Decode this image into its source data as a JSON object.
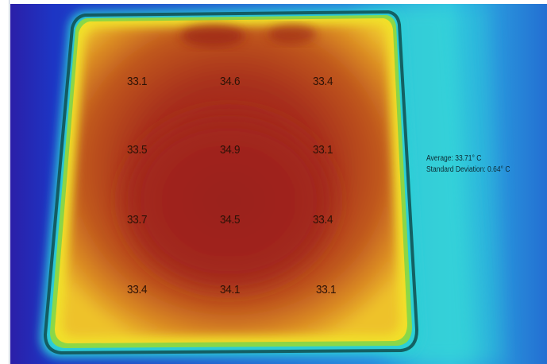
{
  "stats": {
    "average_label": "Average: 33.71° C",
    "std_label": "Standard Deviation: 0.64° C"
  },
  "readings": [
    [
      "33.1",
      "34.6",
      "33.4"
    ],
    [
      "33.5",
      "34.9",
      "33.1"
    ],
    [
      "33.7",
      "34.5",
      "33.4"
    ],
    [
      "33.4",
      "34.1",
      "33.1"
    ]
  ],
  "colors": {
    "cold": "#1d2fbf",
    "cool": "#1f6fd8",
    "cyan": "#29d4d8",
    "green": "#5fd06a",
    "yellow": "#f3e32b",
    "orange": "#e48c1c",
    "red": "#a92a1c",
    "deep_red": "#8e1f16"
  }
}
